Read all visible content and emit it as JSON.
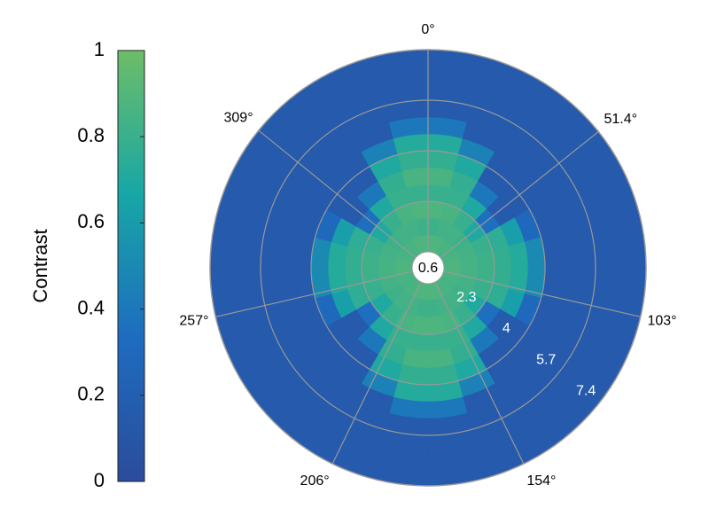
{
  "chart_data": {
    "type": "polar_heatmap",
    "colorbar_label": "Contrast",
    "clim": [
      0,
      1
    ],
    "cticks": [
      0,
      0.2,
      0.4,
      0.6,
      0.8,
      1
    ],
    "colormap": [
      "#2b4c9b",
      "#1e6cc0",
      "#17a7a6",
      "#6dbd68"
    ],
    "rlim": [
      0.6,
      7.4
    ],
    "rticks": [
      0.6,
      2.3,
      4,
      5.7,
      7.4
    ],
    "thetaticks": [
      {
        "value": 0,
        "label": "0°"
      },
      {
        "value": 51.4,
        "label": "51.4°"
      },
      {
        "value": 103,
        "label": "103°"
      },
      {
        "value": 154,
        "label": "154°"
      },
      {
        "value": 206,
        "label": "206°"
      },
      {
        "value": 257,
        "label": "257°"
      },
      {
        "value": 309,
        "label": "309°"
      }
    ],
    "theta_edges": [
      0,
      15,
      30,
      45,
      60,
      75,
      90,
      105,
      120,
      135,
      150,
      165,
      180,
      195,
      210,
      225,
      240,
      255,
      270,
      285,
      300,
      315,
      330,
      345,
      360
    ],
    "r_edges": [
      0.6,
      1.167,
      1.733,
      2.3,
      2.867,
      3.433,
      4.0,
      4.567,
      5.133,
      5.7,
      6.267,
      6.833,
      7.4
    ],
    "values": [
      [
        0.88,
        0.82,
        0.88,
        0.8,
        0.86,
        0.78,
        0.72,
        0.4,
        0.15,
        0.15,
        0.15,
        0.15
      ],
      [
        0.88,
        0.84,
        0.86,
        0.8,
        0.78,
        0.7,
        0.45,
        0.15,
        0.15,
        0.15,
        0.15,
        0.15
      ],
      [
        0.86,
        0.84,
        0.8,
        0.7,
        0.4,
        0.15,
        0.15,
        0.15,
        0.15,
        0.15,
        0.15,
        0.15
      ],
      [
        0.85,
        0.82,
        0.7,
        0.35,
        0.15,
        0.15,
        0.15,
        0.15,
        0.15,
        0.15,
        0.15,
        0.15
      ],
      [
        0.86,
        0.84,
        0.8,
        0.76,
        0.62,
        0.3,
        0.15,
        0.15,
        0.15,
        0.15,
        0.15,
        0.15
      ],
      [
        0.88,
        0.85,
        0.82,
        0.78,
        0.72,
        0.5,
        0.15,
        0.15,
        0.15,
        0.15,
        0.15,
        0.15
      ],
      [
        0.88,
        0.85,
        0.82,
        0.78,
        0.72,
        0.5,
        0.15,
        0.15,
        0.15,
        0.15,
        0.15,
        0.15
      ],
      [
        0.86,
        0.84,
        0.8,
        0.76,
        0.62,
        0.3,
        0.15,
        0.15,
        0.15,
        0.15,
        0.15,
        0.15
      ],
      [
        0.85,
        0.82,
        0.7,
        0.35,
        0.15,
        0.15,
        0.15,
        0.15,
        0.15,
        0.15,
        0.15,
        0.15
      ],
      [
        0.86,
        0.84,
        0.8,
        0.7,
        0.4,
        0.15,
        0.15,
        0.15,
        0.15,
        0.15,
        0.15,
        0.15
      ],
      [
        0.88,
        0.84,
        0.86,
        0.8,
        0.78,
        0.7,
        0.45,
        0.15,
        0.15,
        0.15,
        0.15,
        0.15
      ],
      [
        0.88,
        0.82,
        0.88,
        0.8,
        0.86,
        0.78,
        0.72,
        0.4,
        0.15,
        0.15,
        0.15,
        0.15
      ],
      [
        0.88,
        0.82,
        0.88,
        0.8,
        0.86,
        0.78,
        0.72,
        0.4,
        0.15,
        0.15,
        0.15,
        0.15
      ],
      [
        0.88,
        0.84,
        0.86,
        0.8,
        0.78,
        0.7,
        0.45,
        0.15,
        0.15,
        0.15,
        0.15,
        0.15
      ],
      [
        0.86,
        0.84,
        0.8,
        0.7,
        0.4,
        0.15,
        0.15,
        0.15,
        0.15,
        0.15,
        0.15,
        0.15
      ],
      [
        0.85,
        0.82,
        0.7,
        0.35,
        0.15,
        0.15,
        0.15,
        0.15,
        0.15,
        0.15,
        0.15,
        0.15
      ],
      [
        0.86,
        0.84,
        0.8,
        0.76,
        0.62,
        0.3,
        0.15,
        0.15,
        0.15,
        0.15,
        0.15,
        0.15
      ],
      [
        0.88,
        0.85,
        0.82,
        0.78,
        0.72,
        0.5,
        0.15,
        0.15,
        0.15,
        0.15,
        0.15,
        0.15
      ],
      [
        0.88,
        0.85,
        0.82,
        0.78,
        0.72,
        0.5,
        0.15,
        0.15,
        0.15,
        0.15,
        0.15,
        0.15
      ],
      [
        0.86,
        0.84,
        0.8,
        0.76,
        0.62,
        0.3,
        0.15,
        0.15,
        0.15,
        0.15,
        0.15,
        0.15
      ],
      [
        0.85,
        0.82,
        0.7,
        0.35,
        0.15,
        0.15,
        0.15,
        0.15,
        0.15,
        0.15,
        0.15,
        0.15
      ],
      [
        0.86,
        0.84,
        0.8,
        0.7,
        0.4,
        0.15,
        0.15,
        0.15,
        0.15,
        0.15,
        0.15,
        0.15
      ],
      [
        0.88,
        0.84,
        0.86,
        0.8,
        0.78,
        0.7,
        0.45,
        0.15,
        0.15,
        0.15,
        0.15,
        0.15
      ],
      [
        0.88,
        0.82,
        0.88,
        0.8,
        0.86,
        0.78,
        0.72,
        0.4,
        0.15,
        0.15,
        0.15,
        0.15
      ]
    ]
  }
}
